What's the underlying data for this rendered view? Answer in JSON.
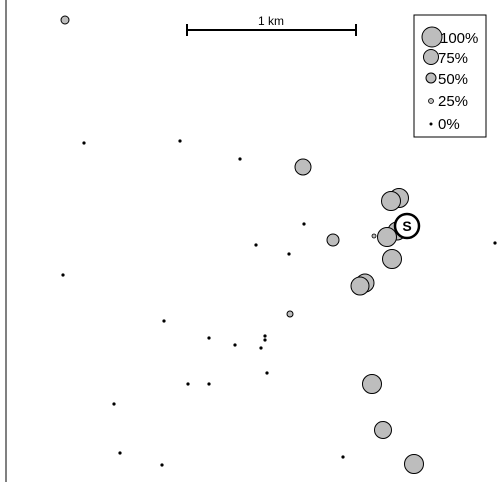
{
  "scale_bar": {
    "label": "1 km"
  },
  "legend": {
    "placement": "top-right",
    "items": [
      {
        "label": "100%",
        "level": 1.0
      },
      {
        "label": "75%",
        "level": 0.75
      },
      {
        "label": "50%",
        "level": 0.5
      },
      {
        "label": "25%",
        "level": 0.25
      },
      {
        "label": "0%",
        "level": 0.0
      }
    ]
  },
  "source_marker": {
    "label": "S"
  },
  "colors": {
    "fill": "#bdbdbd",
    "stroke": "#000000",
    "background": "#ffffff"
  }
}
